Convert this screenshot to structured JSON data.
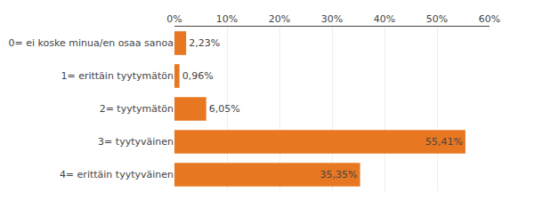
{
  "chart_data": {
    "type": "bar",
    "orientation": "horizontal",
    "categories": [
      "0= ei koske minua/en osaa sanoa",
      "1= erittäin tyytymätön",
      "2= tyytymätön",
      "3= tyytyväinen",
      "4= erittäin tyytyväinen"
    ],
    "values": [
      2.23,
      0.96,
      6.05,
      55.41,
      35.35
    ],
    "value_labels": [
      "2,23%",
      "0,96%",
      "6,05%",
      "55,41%",
      "35,35%"
    ],
    "data_labels": true,
    "color": "#E87722",
    "xlim": [
      0,
      60
    ],
    "xticks": [
      {
        "value": 0,
        "label": "0%"
      },
      {
        "value": 10,
        "label": "10%"
      },
      {
        "value": 20,
        "label": "20%"
      },
      {
        "value": 30,
        "label": "30%"
      },
      {
        "value": 40,
        "label": "40%"
      },
      {
        "value": 50,
        "label": "50%"
      },
      {
        "value": 60,
        "label": "60%"
      }
    ],
    "grid": true
  }
}
